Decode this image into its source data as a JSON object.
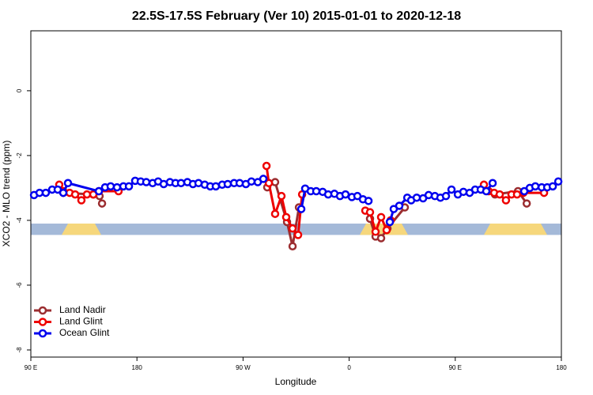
{
  "chart_data": {
    "type": "line",
    "title": "22.5S-17.5S February (Ver 10)   2015-01-01 to 2020-12-18",
    "x_label": "Longitude",
    "y_label": "XCO2 - MLO trend (ppm)",
    "xlim": [
      90,
      540
    ],
    "xticks": [
      {
        "value": 90,
        "label": "90 E"
      },
      180,
      {
        "value": 270,
        "label": "90 W"
      },
      {
        "value": 360,
        "label": "0"
      },
      {
        "value": 450,
        "label": "90 E"
      },
      {
        "value": 540,
        "label": "180"
      }
    ],
    "ylim": [
      -8.22,
      1.85
    ],
    "yticks": [
      0,
      -2,
      -4,
      -6,
      -8
    ],
    "legend": "bottom-left",
    "series": [
      {
        "name": "Land Nadir",
        "color": "#9b2d30",
        "x": [
          117.5,
          143.0,
          148.3,
          150.4,
          null,
          290.5,
          297.2,
          307.3,
          312.0,
          317.4,
          null,
          377.7,
          382.4,
          387.1,
          392.5,
          407.2,
          null,
          474.3,
          483.7,
          503.2,
          510.6
        ],
        "values": [
          -3.15,
          -3.2,
          -3.25,
          -3.48,
          null,
          -2.98,
          -2.82,
          -4.05,
          -4.8,
          -3.6,
          null,
          -3.95,
          -4.5,
          -4.55,
          -4.25,
          -3.6,
          null,
          -3.05,
          -3.2,
          -3.1,
          -3.48
        ]
      },
      {
        "name": "Land Glint",
        "color": "#ee0000",
        "x": [
          114.1,
          117.5,
          122.9,
          127.6,
          132.9,
          137.6,
          143.0,
          147.7,
          164.4,
          null,
          289.9,
          291.9,
          297.2,
          302.6,
          306.6,
          312.0,
          316.7,
          320.1,
          null,
          373.7,
          377.7,
          382.4,
          387.1,
          391.8,
          395.2,
          null,
          474.3,
          478.3,
          483.0,
          487.7,
          493.0,
          497.7,
          502.4,
          507.8,
          525.3
        ],
        "values": [
          -2.9,
          -3.1,
          -3.15,
          -3.2,
          -3.38,
          -3.2,
          -3.2,
          -3.1,
          -3.1,
          null,
          -2.32,
          -2.85,
          -3.8,
          -3.25,
          -3.9,
          -4.25,
          -4.45,
          -3.2,
          null,
          -3.7,
          -3.75,
          -4.35,
          -3.9,
          -4.3,
          -4.0,
          null,
          -2.9,
          -3.1,
          -3.15,
          -3.2,
          -3.38,
          -3.2,
          -3.2,
          -3.15,
          -3.15
        ]
      },
      {
        "name": "Ocean Glint",
        "color": "#0000ee",
        "x": [
          92.7,
          97.4,
          102.7,
          108.1,
          112.8,
          117.5,
          121.5,
          147.7,
          153.0,
          157.7,
          163.1,
          168.5,
          173.2,
          178.5,
          183.2,
          187.9,
          193.3,
          198.0,
          202.7,
          208.0,
          212.7,
          217.4,
          222.8,
          227.5,
          232.2,
          237.5,
          242.2,
          246.9,
          252.3,
          257.0,
          262.4,
          267.1,
          272.4,
          277.1,
          282.5,
          287.2,
          null,
          319.4,
          322.7,
          327.4,
          332.1,
          337.5,
          342.2,
          347.5,
          352.2,
          356.9,
          362.3,
          367.0,
          371.7,
          376.4,
          null,
          394.5,
          397.8,
          402.5,
          409.3,
          412.6,
          417.3,
          422.7,
          427.4,
          432.7,
          437.4,
          442.1,
          446.8,
          452.2,
          456.9,
          462.2,
          466.9,
          471.6,
          476.3,
          481.7,
          null,
          508.5,
          513.2,
          517.9,
          523.3,
          528.0,
          532.7,
          537.4
        ],
        "values": [
          -3.22,
          -3.15,
          -3.15,
          -3.05,
          -3.05,
          -3.15,
          -2.85,
          -3.1,
          -2.98,
          -2.95,
          -2.98,
          -2.95,
          -2.95,
          -2.78,
          -2.8,
          -2.82,
          -2.85,
          -2.8,
          -2.88,
          -2.82,
          -2.85,
          -2.85,
          -2.82,
          -2.88,
          -2.85,
          -2.9,
          -2.95,
          -2.95,
          -2.9,
          -2.88,
          -2.85,
          -2.85,
          -2.88,
          -2.8,
          -2.82,
          -2.72,
          null,
          -3.65,
          -3.02,
          -3.1,
          -3.1,
          -3.12,
          -3.2,
          -3.18,
          -3.25,
          -3.2,
          -3.28,
          -3.25,
          -3.35,
          -3.4,
          null,
          -4.05,
          -3.65,
          -3.55,
          -3.3,
          -3.38,
          -3.3,
          -3.32,
          -3.22,
          -3.25,
          -3.3,
          -3.25,
          -3.05,
          -3.2,
          -3.12,
          -3.15,
          -3.05,
          -3.05,
          -3.1,
          -2.85,
          null,
          -3.1,
          -3.0,
          -2.95,
          -2.98,
          -2.98,
          -2.95,
          -2.8
        ]
      }
    ]
  }
}
